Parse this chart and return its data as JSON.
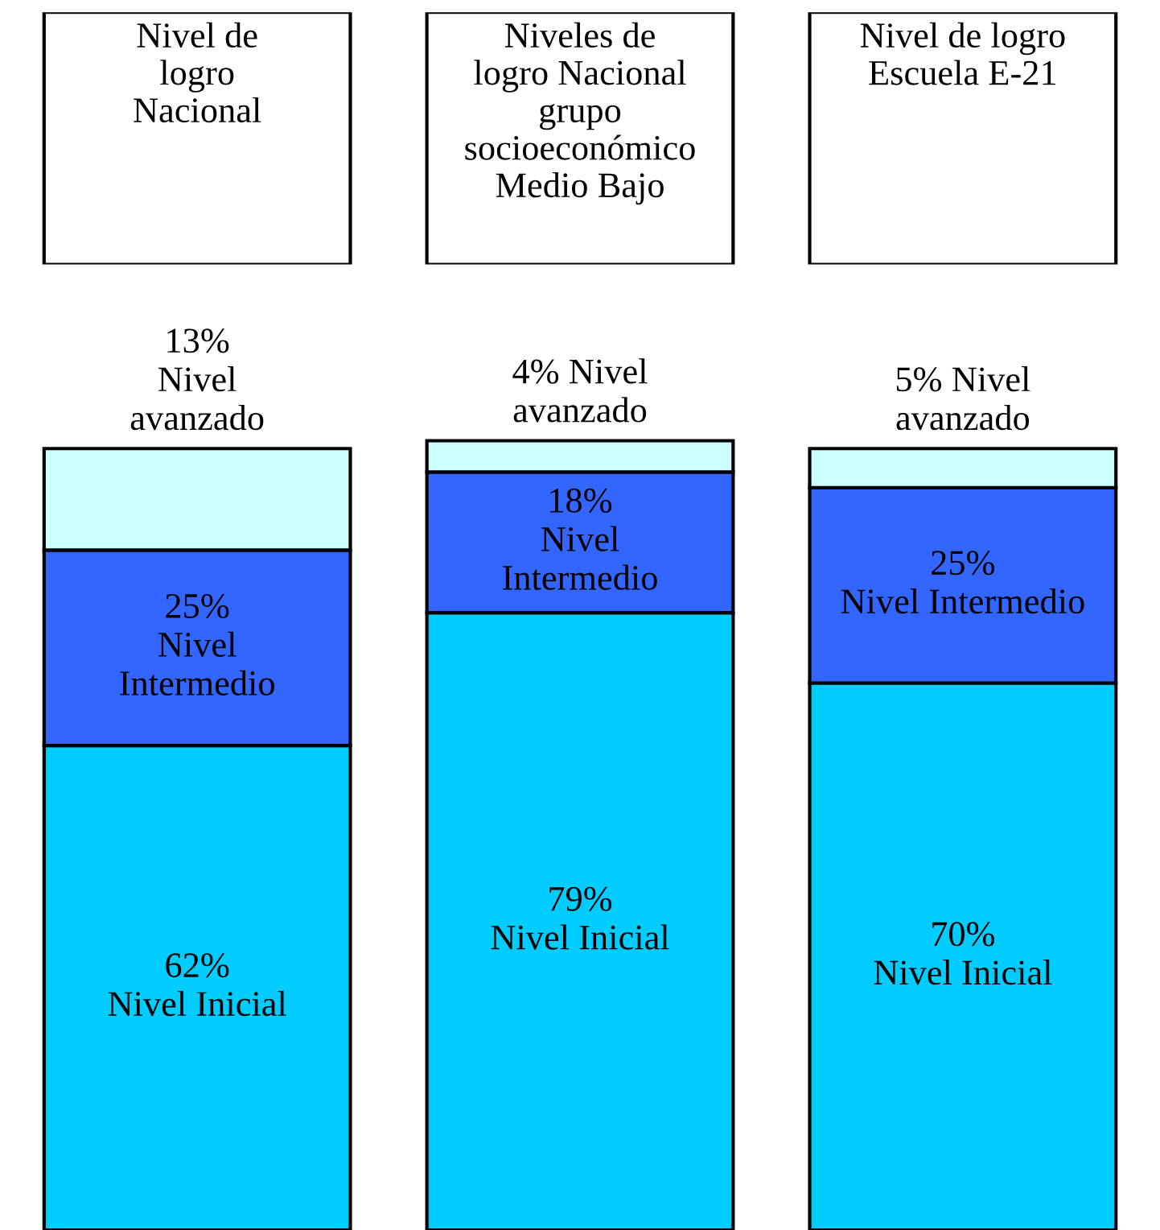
{
  "chart_data": {
    "type": "bar",
    "stacked": true,
    "categories": [
      "Nivel de\nlogro\nNacional",
      "Niveles de\nlogro Nacional\ngrupo\nsocioeconómico\nMedio Bajo",
      "Nivel de logro\nEscuela E-21"
    ],
    "series": [
      {
        "color": "#00ccff",
        "values": [
          62,
          79,
          70
        ],
        "value_labels": [
          "62%\nNivel Inicial",
          "79%\nNivel Inicial",
          "70%\nNivel Inicial"
        ]
      },
      {
        "color": "#3366ff",
        "values": [
          25,
          18,
          25
        ],
        "value_labels": [
          "25%\nNivel\nIntermedio",
          "18%\nNivel\nIntermedio",
          "25%\nNivel Intermedio"
        ]
      },
      {
        "color": "#ccffff",
        "values": [
          13,
          4,
          5
        ],
        "value_labels": [
          "13%\nNivel\navanzado",
          "4% Nivel\navanzado",
          "5% Nivel\navanzado"
        ]
      }
    ]
  }
}
